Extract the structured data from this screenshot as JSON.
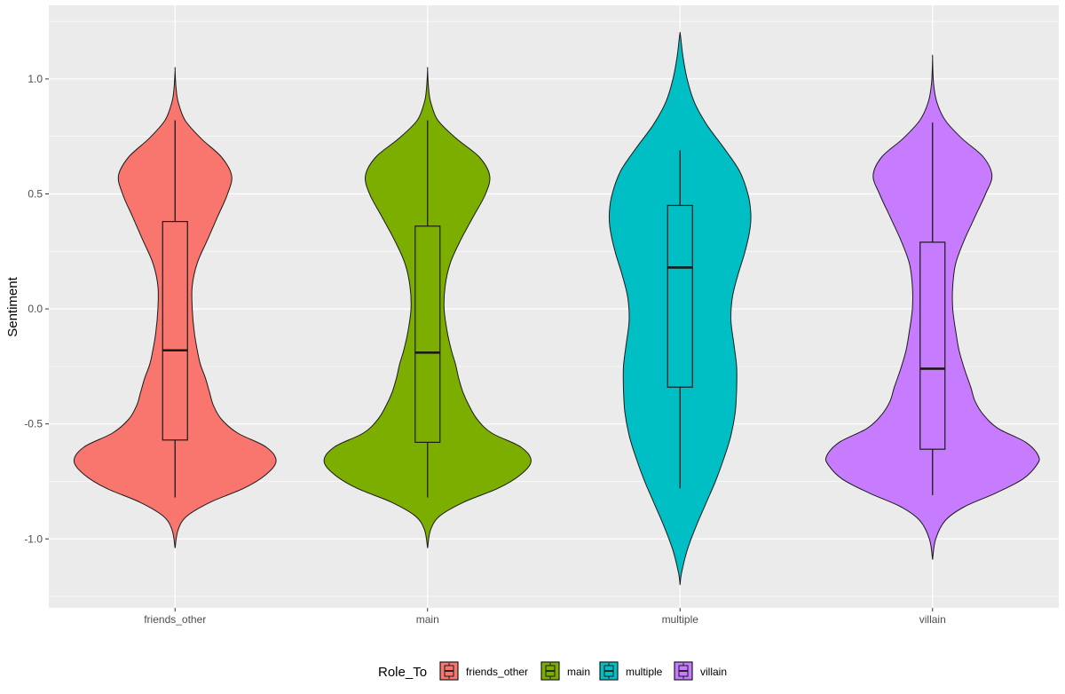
{
  "chart_data": {
    "type": "violin",
    "xlabel": "",
    "ylabel": "Sentiment",
    "ylim": [
      -1.3,
      1.32
    ],
    "yticks": [
      -1.0,
      -0.5,
      0.0,
      0.5,
      1.0
    ],
    "ytick_labels": [
      "-1.0",
      "-0.5",
      "0.0",
      "0.5",
      "1.0"
    ],
    "grid": true,
    "categories": [
      "friends_other",
      "main",
      "multiple",
      "villain"
    ],
    "colors": [
      "#F8766D",
      "#7CAE00",
      "#00BFC4",
      "#C77CFF"
    ],
    "legend": {
      "title": "Role_To",
      "position": "bottom",
      "entries": [
        "friends_other",
        "main",
        "multiple",
        "villain"
      ]
    },
    "violins": [
      {
        "name": "friends_other",
        "range": [
          -1.04,
          1.04
        ],
        "max_half_width": 0.4,
        "density": [
          [
            -1.04,
            0.0
          ],
          [
            -0.96,
            0.03
          ],
          [
            -0.9,
            0.12
          ],
          [
            -0.84,
            0.35
          ],
          [
            -0.78,
            0.68
          ],
          [
            -0.72,
            0.9
          ],
          [
            -0.66,
            1.0
          ],
          [
            -0.6,
            0.9
          ],
          [
            -0.54,
            0.62
          ],
          [
            -0.48,
            0.46
          ],
          [
            -0.42,
            0.38
          ],
          [
            -0.36,
            0.34
          ],
          [
            -0.3,
            0.3
          ],
          [
            -0.24,
            0.25
          ],
          [
            -0.18,
            0.22
          ],
          [
            -0.1,
            0.19
          ],
          [
            0.0,
            0.17
          ],
          [
            0.1,
            0.17
          ],
          [
            0.2,
            0.22
          ],
          [
            0.3,
            0.32
          ],
          [
            0.4,
            0.42
          ],
          [
            0.5,
            0.52
          ],
          [
            0.58,
            0.56
          ],
          [
            0.66,
            0.46
          ],
          [
            0.74,
            0.26
          ],
          [
            0.82,
            0.1
          ],
          [
            0.9,
            0.03
          ],
          [
            0.96,
            0.01
          ],
          [
            1.04,
            0.0
          ]
        ],
        "box": {
          "q1": -0.57,
          "median": -0.18,
          "q3": 0.38,
          "whisker_low": -0.82,
          "whisker_high": 0.82
        }
      },
      {
        "name": "main",
        "range": [
          -1.04,
          1.04
        ],
        "max_half_width": 0.41,
        "density": [
          [
            -1.04,
            0.0
          ],
          [
            -0.96,
            0.03
          ],
          [
            -0.9,
            0.12
          ],
          [
            -0.84,
            0.35
          ],
          [
            -0.78,
            0.68
          ],
          [
            -0.72,
            0.9
          ],
          [
            -0.66,
            1.0
          ],
          [
            -0.6,
            0.9
          ],
          [
            -0.54,
            0.62
          ],
          [
            -0.48,
            0.48
          ],
          [
            -0.42,
            0.4
          ],
          [
            -0.36,
            0.34
          ],
          [
            -0.3,
            0.3
          ],
          [
            -0.24,
            0.27
          ],
          [
            -0.18,
            0.23
          ],
          [
            -0.1,
            0.19
          ],
          [
            0.0,
            0.16
          ],
          [
            0.1,
            0.17
          ],
          [
            0.2,
            0.22
          ],
          [
            0.3,
            0.32
          ],
          [
            0.4,
            0.44
          ],
          [
            0.5,
            0.56
          ],
          [
            0.58,
            0.6
          ],
          [
            0.66,
            0.5
          ],
          [
            0.74,
            0.28
          ],
          [
            0.82,
            0.1
          ],
          [
            0.9,
            0.03
          ],
          [
            0.96,
            0.01
          ],
          [
            1.04,
            0.0
          ]
        ],
        "box": {
          "q1": -0.58,
          "median": -0.19,
          "q3": 0.36,
          "whisker_low": -0.82,
          "whisker_high": 0.82
        }
      },
      {
        "name": "multiple",
        "range": [
          -1.2,
          1.2
        ],
        "max_half_width": 0.28,
        "density": [
          [
            -1.2,
            0.0
          ],
          [
            -1.15,
            0.02
          ],
          [
            -1.05,
            0.1
          ],
          [
            -0.95,
            0.22
          ],
          [
            -0.85,
            0.36
          ],
          [
            -0.75,
            0.5
          ],
          [
            -0.65,
            0.62
          ],
          [
            -0.55,
            0.72
          ],
          [
            -0.45,
            0.78
          ],
          [
            -0.35,
            0.8
          ],
          [
            -0.25,
            0.8
          ],
          [
            -0.15,
            0.76
          ],
          [
            -0.05,
            0.72
          ],
          [
            0.05,
            0.74
          ],
          [
            0.15,
            0.82
          ],
          [
            0.25,
            0.92
          ],
          [
            0.35,
            0.99
          ],
          [
            0.42,
            1.0
          ],
          [
            0.5,
            0.96
          ],
          [
            0.6,
            0.84
          ],
          [
            0.7,
            0.62
          ],
          [
            0.8,
            0.38
          ],
          [
            0.9,
            0.2
          ],
          [
            1.0,
            0.1
          ],
          [
            1.1,
            0.04
          ],
          [
            1.18,
            0.01
          ],
          [
            1.2,
            0.0
          ]
        ],
        "box": {
          "q1": -0.34,
          "median": 0.18,
          "q3": 0.45,
          "whisker_low": -0.78,
          "whisker_high": 0.69
        }
      },
      {
        "name": "villain",
        "range": [
          -1.09,
          1.09
        ],
        "max_half_width": 0.42,
        "density": [
          [
            -1.09,
            0.0
          ],
          [
            -1.0,
            0.03
          ],
          [
            -0.92,
            0.12
          ],
          [
            -0.86,
            0.3
          ],
          [
            -0.8,
            0.6
          ],
          [
            -0.74,
            0.85
          ],
          [
            -0.68,
            0.98
          ],
          [
            -0.64,
            1.0
          ],
          [
            -0.58,
            0.88
          ],
          [
            -0.52,
            0.62
          ],
          [
            -0.46,
            0.48
          ],
          [
            -0.4,
            0.4
          ],
          [
            -0.34,
            0.36
          ],
          [
            -0.26,
            0.3
          ],
          [
            -0.18,
            0.25
          ],
          [
            -0.1,
            0.22
          ],
          [
            0.0,
            0.19
          ],
          [
            0.1,
            0.19
          ],
          [
            0.2,
            0.22
          ],
          [
            0.3,
            0.3
          ],
          [
            0.4,
            0.4
          ],
          [
            0.5,
            0.5
          ],
          [
            0.58,
            0.56
          ],
          [
            0.66,
            0.48
          ],
          [
            0.74,
            0.28
          ],
          [
            0.82,
            0.12
          ],
          [
            0.9,
            0.04
          ],
          [
            0.98,
            0.01
          ],
          [
            1.09,
            0.0
          ]
        ],
        "box": {
          "q1": -0.61,
          "median": -0.26,
          "q3": 0.29,
          "whisker_low": -0.81,
          "whisker_high": 0.81
        }
      }
    ]
  }
}
